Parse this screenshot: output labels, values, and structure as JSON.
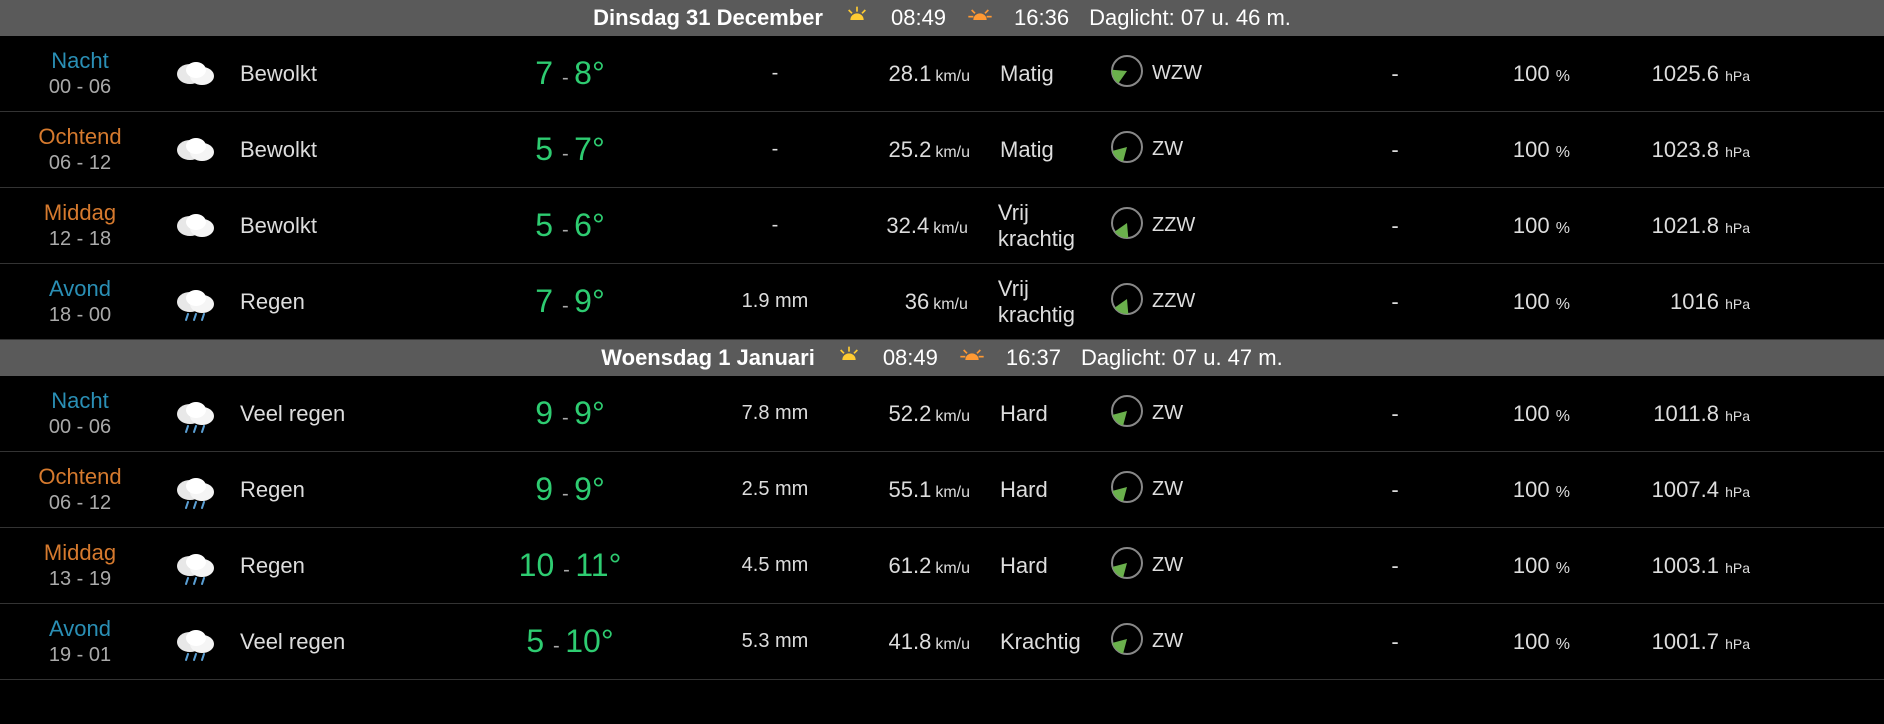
{
  "colors": {
    "bg": "#000000",
    "header_bg": "#5a5a5a",
    "text": "#dddddd",
    "temp": "#2ecc71",
    "nacht": "#2a8fb5",
    "ochtend": "#d67a2e",
    "middag": "#d67a2e",
    "avond": "#2a8fb5",
    "border": "#333333"
  },
  "days": [
    {
      "title": "Dinsdag 31 December",
      "sunrise": "08:49",
      "sunset": "16:36",
      "daylight_label": "Daglicht: 07 u. 46 m.",
      "rows": [
        {
          "period": "Nacht",
          "period_class": "nacht",
          "time": "00 - 06",
          "icon": "cloud",
          "desc": "Bewolkt",
          "tlow": "7",
          "thigh": "8°",
          "precip": "-",
          "wind_speed": "28.1",
          "wind_unit": "km/u",
          "wind_desc": "Matig",
          "dir": "WZW",
          "dir_angle": 245,
          "dash": "-",
          "humidity": "100",
          "pressure": "1025.6"
        },
        {
          "period": "Ochtend",
          "period_class": "ochtend",
          "time": "06 - 12",
          "icon": "cloud",
          "desc": "Bewolkt",
          "tlow": "5",
          "thigh": "7°",
          "precip": "-",
          "wind_speed": "25.2",
          "wind_unit": "km/u",
          "wind_desc": "Matig",
          "dir": "ZW",
          "dir_angle": 225,
          "dash": "-",
          "humidity": "100",
          "pressure": "1023.8"
        },
        {
          "period": "Middag",
          "period_class": "middag",
          "time": "12 - 18",
          "icon": "cloud",
          "desc": "Bewolkt",
          "tlow": "5",
          "thigh": "6°",
          "precip": "-",
          "wind_speed": "32.4",
          "wind_unit": "km/u",
          "wind_desc": "Vrij krachtig",
          "dir": "ZZW",
          "dir_angle": 205,
          "dash": "-",
          "humidity": "100",
          "pressure": "1021.8"
        },
        {
          "period": "Avond",
          "period_class": "avond",
          "time": "18 - 00",
          "icon": "rain",
          "desc": "Regen",
          "tlow": "7",
          "thigh": "9°",
          "precip": "1.9 mm",
          "wind_speed": "36",
          "wind_unit": "km/u",
          "wind_desc": "Vrij krachtig",
          "dir": "ZZW",
          "dir_angle": 205,
          "dash": "-",
          "humidity": "100",
          "pressure": "1016"
        }
      ]
    },
    {
      "title": "Woensdag 1 Januari",
      "sunrise": "08:49",
      "sunset": "16:37",
      "daylight_label": "Daglicht: 07 u. 47 m.",
      "rows": [
        {
          "period": "Nacht",
          "period_class": "nacht",
          "time": "00 - 06",
          "icon": "rain",
          "desc": "Veel regen",
          "tlow": "9",
          "thigh": "9°",
          "precip": "7.8 mm",
          "wind_speed": "52.2",
          "wind_unit": "km/u",
          "wind_desc": "Hard",
          "dir": "ZW",
          "dir_angle": 225,
          "dash": "-",
          "humidity": "100",
          "pressure": "1011.8"
        },
        {
          "period": "Ochtend",
          "period_class": "ochtend",
          "time": "06 - 12",
          "icon": "rain",
          "desc": "Regen",
          "tlow": "9",
          "thigh": "9°",
          "precip": "2.5 mm",
          "wind_speed": "55.1",
          "wind_unit": "km/u",
          "wind_desc": "Hard",
          "dir": "ZW",
          "dir_angle": 225,
          "dash": "-",
          "humidity": "100",
          "pressure": "1007.4"
        },
        {
          "period": "Middag",
          "period_class": "middag",
          "time": "13 - 19",
          "icon": "rain",
          "desc": "Regen",
          "tlow": "10",
          "thigh": "11°",
          "precip": "4.5 mm",
          "wind_speed": "61.2",
          "wind_unit": "km/u",
          "wind_desc": "Hard",
          "dir": "ZW",
          "dir_angle": 225,
          "dash": "-",
          "humidity": "100",
          "pressure": "1003.1"
        },
        {
          "period": "Avond",
          "period_class": "avond",
          "time": "19 - 01",
          "icon": "rain",
          "desc": "Veel regen",
          "tlow": "5",
          "thigh": "10°",
          "precip": "5.3 mm",
          "wind_speed": "41.8",
          "wind_unit": "km/u",
          "wind_desc": "Krachtig",
          "dir": "ZW",
          "dir_angle": 225,
          "dash": "-",
          "humidity": "100",
          "pressure": "1001.7"
        }
      ]
    }
  ],
  "units": {
    "humidity": "%",
    "pressure": "hPa"
  }
}
